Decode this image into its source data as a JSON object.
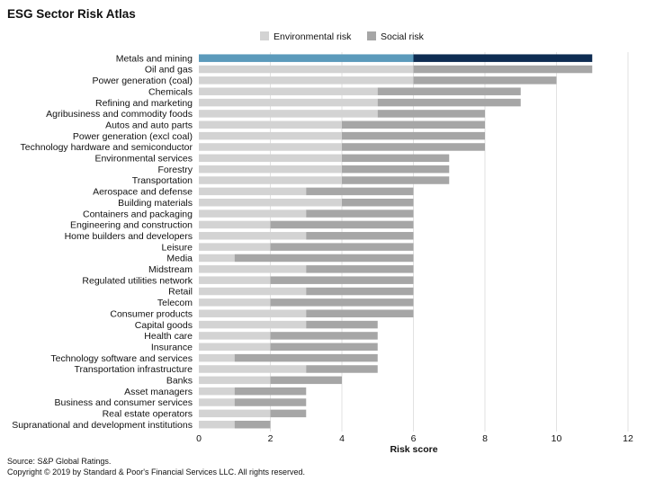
{
  "title": "ESG Sector Risk Atlas",
  "footer": {
    "source": "Source: S&P Global Ratings.",
    "copyright": "Copyright © 2019 by Standard & Poor's Financial Services LLC. All rights reserved."
  },
  "colors": {
    "environmental": "#d3d3d3",
    "social": "#a6a6a6",
    "highlight_environmental": "#5b9abb",
    "highlight_social": "#0e2c52",
    "grid": "#e2e2e2"
  },
  "chart_data": {
    "type": "bar",
    "orientation": "horizontal",
    "stacked": true,
    "title": "ESG Sector Risk Atlas",
    "xlabel": "Risk score",
    "ylabel": "",
    "xlim": [
      0,
      12
    ],
    "xticks": [
      0,
      2,
      4,
      6,
      8,
      10,
      12
    ],
    "grid": true,
    "legend_position": "top",
    "highlighted_category": "Metals and mining",
    "categories": [
      "Metals and mining",
      "Oil and gas",
      "Power generation (coal)",
      "Chemicals",
      "Refining and marketing",
      "Agribusiness and commodity foods",
      "Autos and auto parts",
      "Power generation (excl coal)",
      "Technology hardware and semiconductor",
      "Environmental services",
      "Forestry",
      "Transportation",
      "Aerospace and defense",
      "Building materials",
      "Containers and packaging",
      "Engineering and construction",
      "Home builders and developers",
      "Leisure",
      "Media",
      "Midstream",
      "Regulated utilities network",
      "Retail",
      "Telecom",
      "Consumer products",
      "Capital goods",
      "Health care",
      "Insurance",
      "Technology software and services",
      "Transportation infrastructure",
      "Banks",
      "Asset managers",
      "Business and consumer services",
      "Real estate operators",
      "Supranational and development institutions"
    ],
    "series": [
      {
        "name": "Environmental risk",
        "values": [
          6,
          6,
          6,
          5,
          5,
          5,
          4,
          4,
          4,
          4,
          4,
          4,
          3,
          4,
          3,
          2,
          3,
          2,
          1,
          3,
          2,
          3,
          2,
          3,
          3,
          2,
          2,
          1,
          3,
          2,
          1,
          1,
          2,
          1
        ]
      },
      {
        "name": "Social risk",
        "values": [
          5,
          5,
          4,
          4,
          4,
          3,
          4,
          4,
          4,
          3,
          3,
          3,
          3,
          2,
          3,
          4,
          3,
          4,
          5,
          3,
          4,
          3,
          4,
          3,
          2,
          3,
          3,
          4,
          2,
          2,
          2,
          2,
          1,
          1
        ]
      }
    ]
  }
}
